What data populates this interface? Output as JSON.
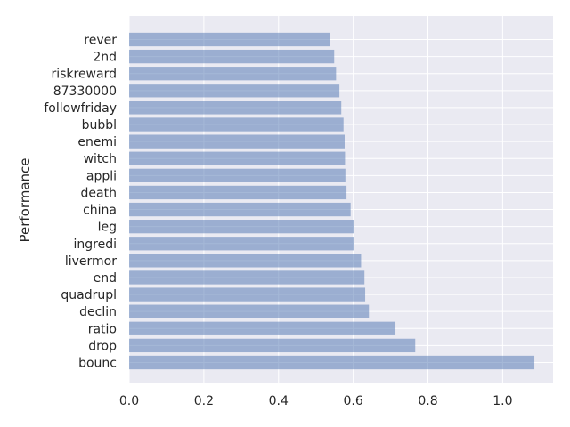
{
  "chart_data": {
    "type": "bar",
    "orientation": "horizontal",
    "title": "",
    "xlabel": "",
    "ylabel": "Performance",
    "xlim": [
      0,
      1.135
    ],
    "xticks": [
      0.0,
      0.2,
      0.4,
      0.6,
      0.8,
      1.0
    ],
    "xtick_labels": [
      "0.0",
      "0.2",
      "0.4",
      "0.6",
      "0.8",
      "1.0"
    ],
    "grid": true,
    "bar_color": "#4c72b0",
    "bar_alpha": 0.5,
    "background_color": "#eaeaf2",
    "categories": [
      "rever",
      "2nd",
      "riskreward",
      "87330000",
      "followfriday",
      "bubbl",
      "enemi",
      "witch",
      "appli",
      "death",
      "china",
      "leg",
      "ingredi",
      "livermor",
      "end",
      "quadrupl",
      "declin",
      "ratio",
      "drop",
      "bounc"
    ],
    "values": [
      0.537,
      0.549,
      0.554,
      0.563,
      0.568,
      0.574,
      0.577,
      0.578,
      0.579,
      0.582,
      0.593,
      0.601,
      0.602,
      0.621,
      0.63,
      0.632,
      0.642,
      0.713,
      0.766,
      1.085
    ]
  }
}
